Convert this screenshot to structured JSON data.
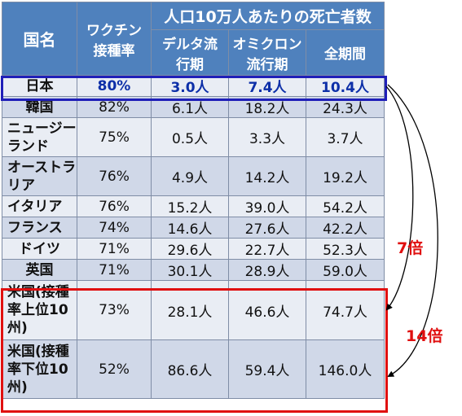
{
  "headers": {
    "country": "国名",
    "vaccine_line1": "ワクチン",
    "vaccine_line2": "接種率",
    "group": "人口10万人あたりの死亡者数",
    "delta_line1": "デルタ流",
    "delta_line2": "行期",
    "omicron_line1": "オミクロン",
    "omicron_line2": "流行期",
    "total": "全期間"
  },
  "rows": [
    {
      "name": "日本",
      "rate": "80%",
      "delta": "3.0人",
      "omicron": "7.4人",
      "total": "10.4人"
    },
    {
      "name": "韓国",
      "rate": "82%",
      "delta": "6.1人",
      "omicron": "18.2人",
      "total": "24.3人"
    },
    {
      "name": "ニュージーランド",
      "rate": "75%",
      "delta": "0.5人",
      "omicron": "3.3人",
      "total": "3.7人"
    },
    {
      "name": "オーストラリア",
      "rate": "76%",
      "delta": "4.9人",
      "omicron": "14.2人",
      "total": "19.2人"
    },
    {
      "name": "イタリア",
      "rate": "76%",
      "delta": "15.2人",
      "omicron": "39.0人",
      "total": "54.2人"
    },
    {
      "name": "フランス",
      "rate": "74%",
      "delta": "14.6人",
      "omicron": "27.6人",
      "total": "42.2人"
    },
    {
      "name": "ドイツ",
      "rate": "71%",
      "delta": "29.6人",
      "omicron": "22.7人",
      "total": "52.3人"
    },
    {
      "name": "英国",
      "rate": "71%",
      "delta": "30.1人",
      "omicron": "28.9人",
      "total": "59.0人"
    },
    {
      "name": "米国(接種率上位10州)",
      "rate": "73%",
      "delta": "28.1人",
      "omicron": "46.6人",
      "total": "74.7人"
    },
    {
      "name": "米国(接種率下位10州)",
      "rate": "52%",
      "delta": "86.6人",
      "omicron": "59.4人",
      "total": "146.0人"
    }
  ],
  "annotations": {
    "seven_times": "7倍",
    "fourteen_times": "14倍"
  },
  "colors": {
    "header_bg": "#4f81bd",
    "row_odd": "#d0d8e8",
    "row_even": "#e9edf4",
    "highlight_blue": "#1f1fb8",
    "highlight_red": "#e01010"
  }
}
